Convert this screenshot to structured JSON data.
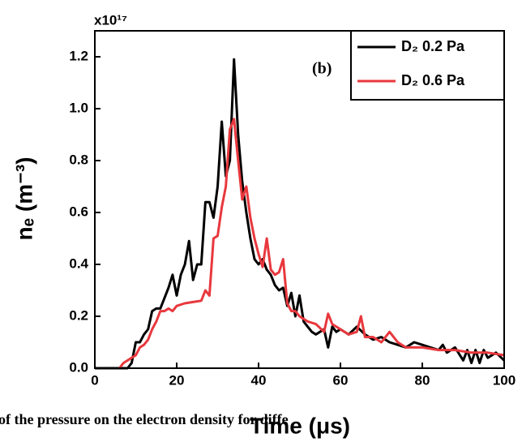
{
  "chart_data": {
    "type": "line",
    "y_multiplier": "x10¹⁷",
    "x_label": "Time (μs)",
    "y_label": "nₑ (m⁻³)",
    "annotation": "(b)",
    "caption": "of the pressure on the electron density for diffe",
    "xlim": [
      0,
      100
    ],
    "xticks": [
      0,
      20,
      40,
      60,
      80,
      100
    ],
    "ylim": [
      0,
      1.3
    ],
    "yticks": [
      {
        "value": 0,
        "label": "0.0"
      },
      0.2,
      0.4,
      0.6,
      0.8,
      {
        "value": 1,
        "label": "1.0"
      },
      1.2
    ],
    "legend": "upper right",
    "series": [
      {
        "name": "D₂ 0.2 Pa",
        "color": "#000000",
        "x": [
          0,
          8,
          9,
          10,
          11,
          12,
          13,
          14,
          15,
          16,
          17,
          18,
          19,
          20,
          21,
          22,
          23,
          24,
          25,
          26,
          27,
          28,
          29,
          30,
          31,
          32,
          33,
          34,
          35,
          36,
          37,
          38,
          39,
          40,
          41,
          42,
          43,
          44,
          45,
          46,
          47,
          48,
          49,
          50,
          51,
          52,
          53,
          54,
          55,
          56,
          57,
          58,
          59,
          60,
          62,
          64,
          66,
          68,
          70,
          72,
          74,
          76,
          78,
          80,
          82,
          84,
          85,
          86,
          88,
          90,
          91,
          92,
          93,
          94,
          95,
          96,
          98,
          100
        ],
        "values": [
          0,
          0,
          0.02,
          0.1,
          0.1,
          0.13,
          0.15,
          0.22,
          0.23,
          0.23,
          0.27,
          0.31,
          0.36,
          0.28,
          0.36,
          0.4,
          0.49,
          0.34,
          0.4,
          0.4,
          0.64,
          0.64,
          0.58,
          0.7,
          0.95,
          0.74,
          0.8,
          1.19,
          0.9,
          0.72,
          0.6,
          0.5,
          0.42,
          0.4,
          0.42,
          0.38,
          0.36,
          0.32,
          0.3,
          0.31,
          0.24,
          0.29,
          0.2,
          0.28,
          0.18,
          0.16,
          0.14,
          0.13,
          0.14,
          0.15,
          0.08,
          0.16,
          0.14,
          0.15,
          0.13,
          0.16,
          0.13,
          0.11,
          0.12,
          0.1,
          0.09,
          0.08,
          0.1,
          0.09,
          0.08,
          0.07,
          0.09,
          0.06,
          0.08,
          0.03,
          0.07,
          0.02,
          0.07,
          0.02,
          0.07,
          0.04,
          0.06,
          0.03
        ]
      },
      {
        "name": "D₂ 0.6 Pa",
        "color": "#e8383d",
        "x": [
          6,
          7,
          8,
          9,
          10,
          11,
          12,
          13,
          14,
          15,
          16,
          17,
          18,
          19,
          20,
          22,
          24,
          26,
          27,
          28,
          29,
          30,
          31,
          32,
          33,
          34,
          35,
          36,
          37,
          38,
          39,
          40,
          41,
          42,
          43,
          44,
          45,
          46,
          47,
          48,
          49,
          50,
          52,
          54,
          56,
          57,
          58,
          60,
          62,
          64,
          65,
          66,
          68,
          70,
          72,
          74,
          76,
          80,
          84,
          88,
          92,
          96,
          100
        ],
        "values": [
          0,
          0.02,
          0.03,
          0.04,
          0.05,
          0.08,
          0.09,
          0.11,
          0.15,
          0.18,
          0.22,
          0.22,
          0.23,
          0.22,
          0.24,
          0.25,
          0.255,
          0.26,
          0.3,
          0.28,
          0.5,
          0.51,
          0.62,
          0.7,
          0.92,
          0.96,
          0.8,
          0.65,
          0.7,
          0.58,
          0.5,
          0.44,
          0.39,
          0.5,
          0.38,
          0.36,
          0.37,
          0.42,
          0.25,
          0.22,
          0.22,
          0.2,
          0.18,
          0.17,
          0.14,
          0.21,
          0.17,
          0.15,
          0.13,
          0.14,
          0.2,
          0.12,
          0.12,
          0.1,
          0.14,
          0.1,
          0.08,
          0.08,
          0.07,
          0.07,
          0.06,
          0.06,
          0.05
        ]
      }
    ]
  }
}
